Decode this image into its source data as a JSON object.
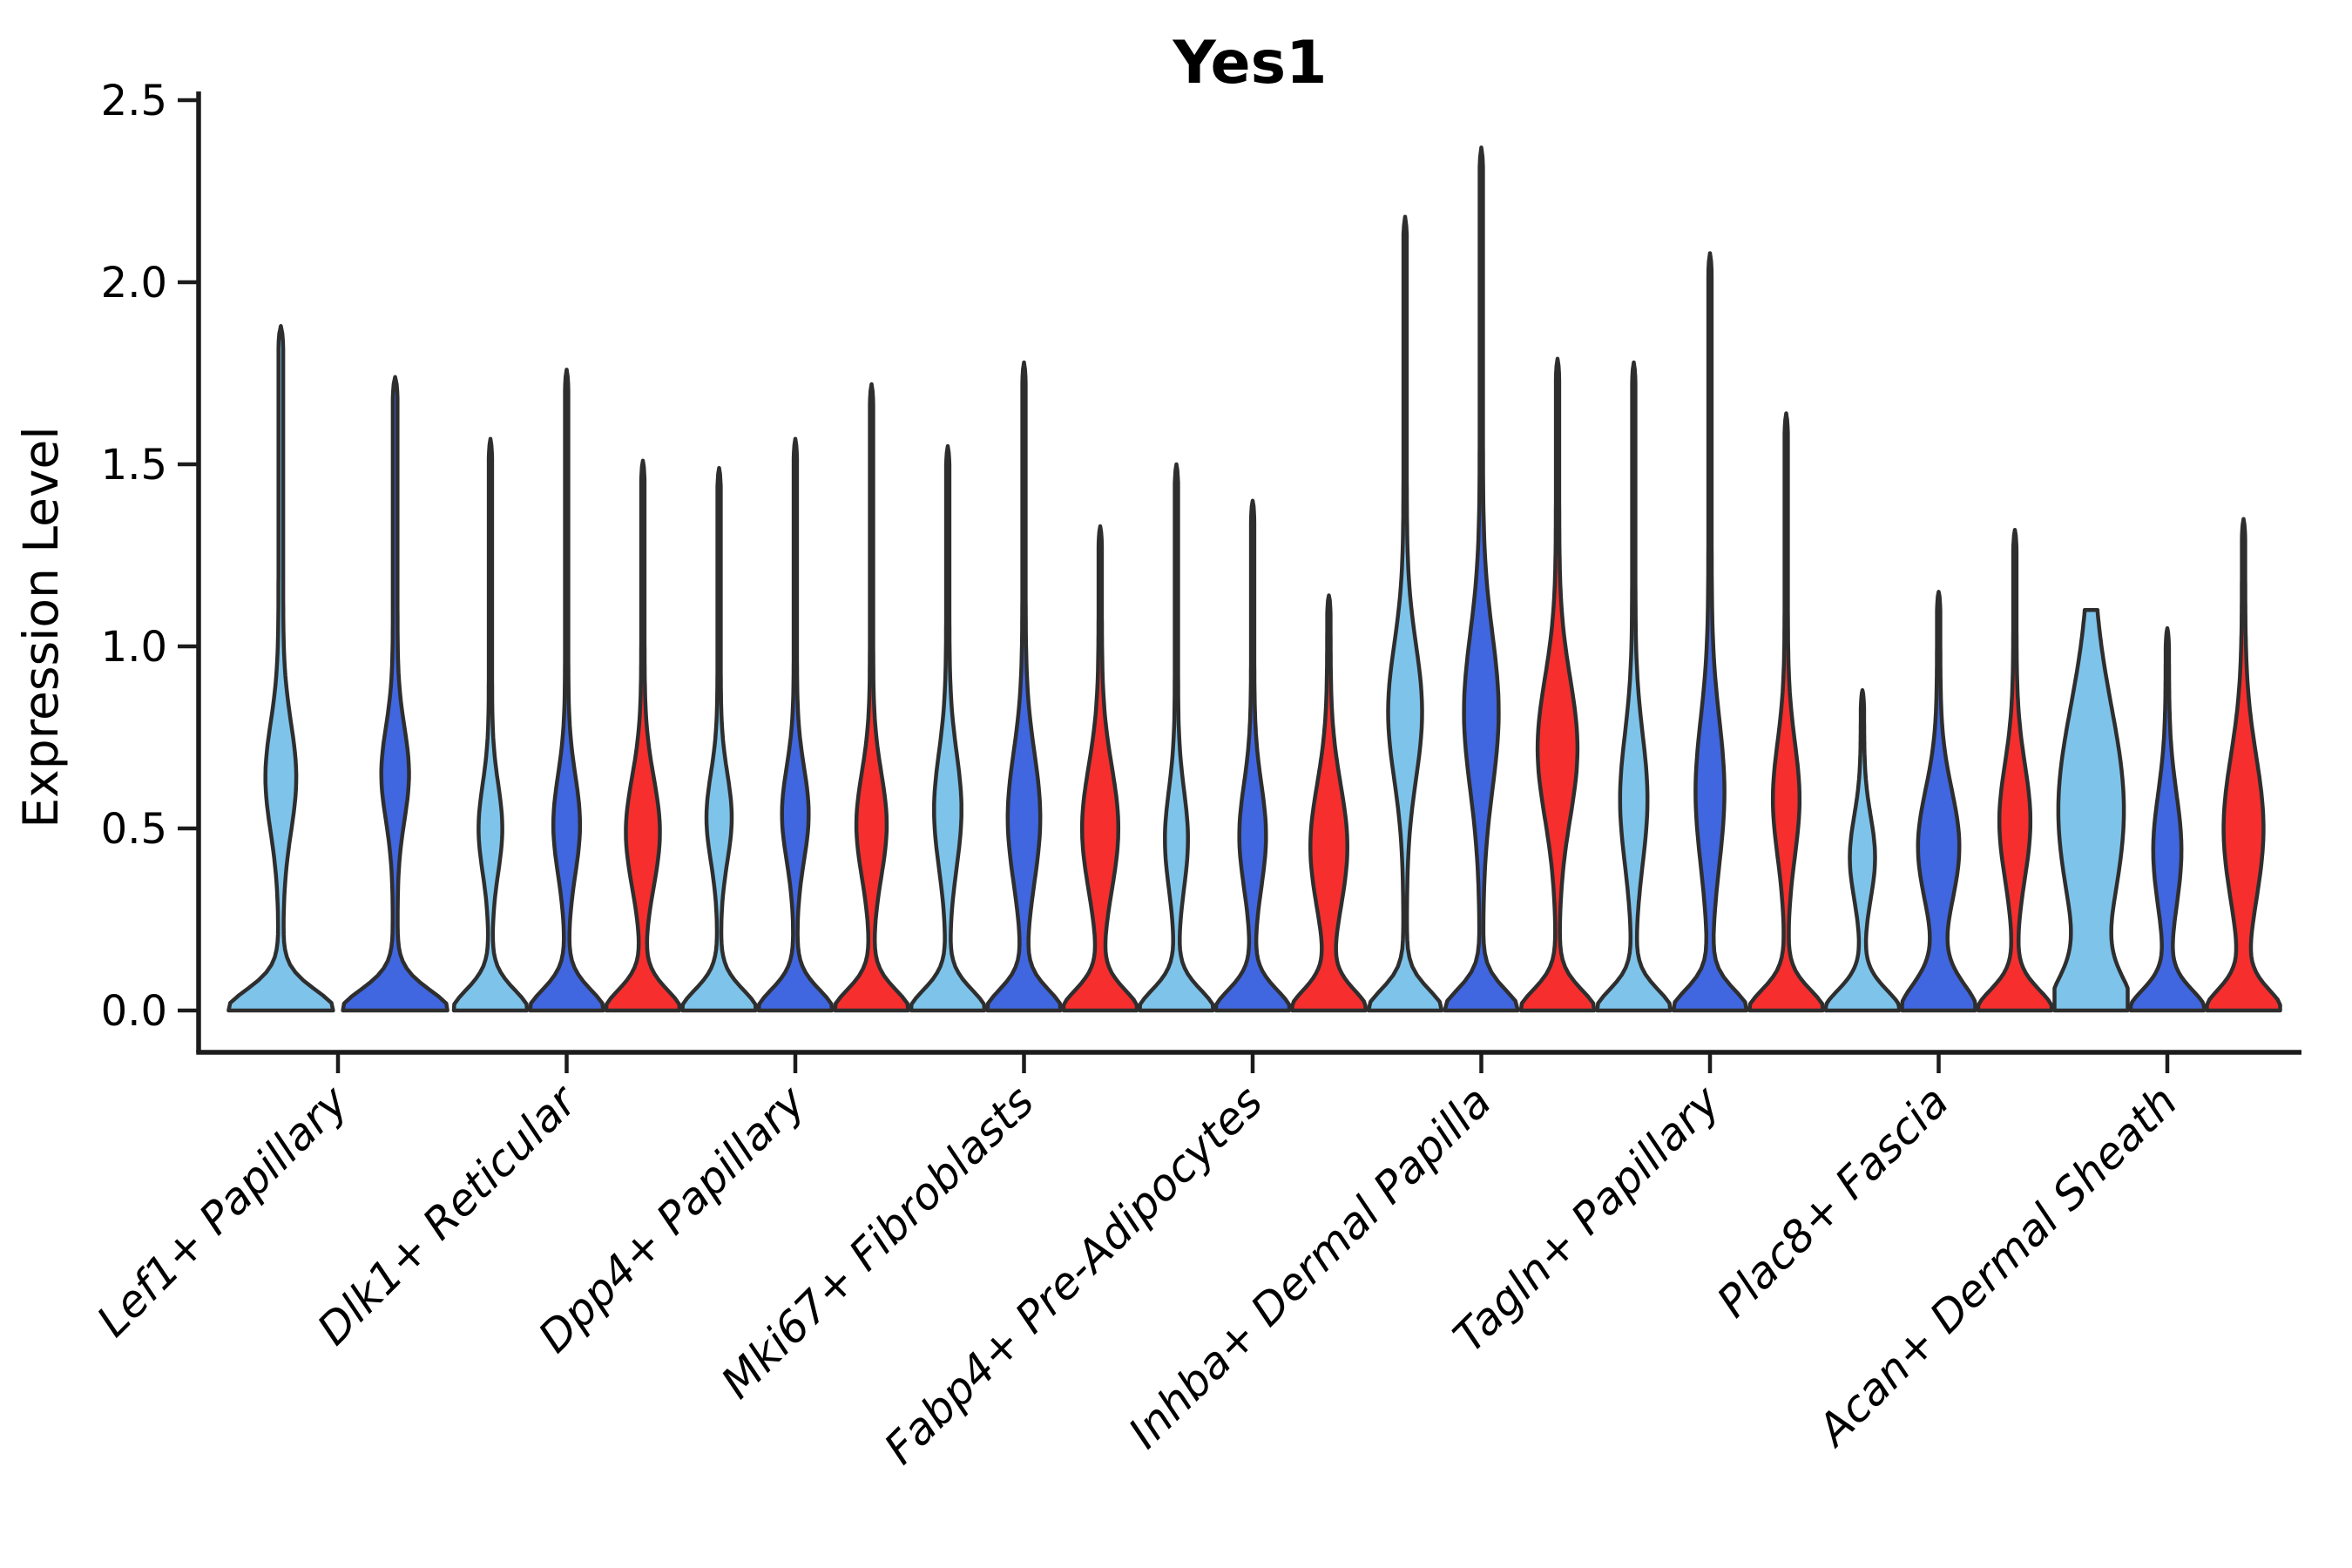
{
  "chart_data": {
    "type": "violin",
    "title": "Yes1",
    "ylabel": "Expression Level",
    "xlabel": "",
    "ylim": [
      0,
      2.5
    ],
    "grid": false,
    "legend_position": "none",
    "background_color": "#ffffff",
    "axis_color": "#1c1c1c",
    "outline_color": "#2e2e2e",
    "yticks": [
      {
        "value": 0.0,
        "label": "0.0"
      },
      {
        "value": 0.5,
        "label": "0.5"
      },
      {
        "value": 1.0,
        "label": "1.0"
      },
      {
        "value": 1.5,
        "label": "1.5"
      },
      {
        "value": 2.0,
        "label": "2.0"
      },
      {
        "value": 2.5,
        "label": "2.5"
      }
    ],
    "categories": [
      "Lef1+ Papillary",
      "Dlk1+ Reticular",
      "Dpp4+ Papillary",
      "Mki67+ Fibroblasts",
      "Fabp4+ Pre-Adipocytes",
      "Inhba+ Dermal Papilla",
      "Tagln+ Papillary",
      "Plac8+ Fascia",
      "Acan+ Dermal Sheath"
    ],
    "series": [
      {
        "name": "skyblue",
        "color": "#7ec3ea"
      },
      {
        "name": "royalblue",
        "color": "#4066e0"
      },
      {
        "name": "red",
        "color": "#f62e2e"
      }
    ],
    "groups": [
      {
        "category": "Lef1+ Papillary",
        "violins": [
          {
            "series": "skyblue",
            "max": 1.88,
            "mode": 0.64,
            "mode_width": 0.25,
            "mode_sigma": 0.21
          },
          {
            "series": "royalblue",
            "max": 1.74,
            "mode": 0.65,
            "mode_width": 0.22,
            "mode_sigma": 0.18
          }
        ]
      },
      {
        "category": "Dlk1+ Reticular",
        "violins": [
          {
            "series": "skyblue",
            "max": 1.57,
            "mode": 0.5,
            "mode_width": 0.28,
            "mode_sigma": 0.17
          },
          {
            "series": "royalblue",
            "max": 1.76,
            "mode": 0.51,
            "mode_width": 0.32,
            "mode_sigma": 0.19
          },
          {
            "series": "red",
            "max": 1.51,
            "mode": 0.49,
            "mode_width": 0.42,
            "mode_sigma": 0.21
          }
        ]
      },
      {
        "category": "Dpp4+ Papillary",
        "violins": [
          {
            "series": "skyblue",
            "max": 1.49,
            "mode": 0.53,
            "mode_width": 0.3,
            "mode_sigma": 0.17
          },
          {
            "series": "royalblue",
            "max": 1.57,
            "mode": 0.54,
            "mode_width": 0.32,
            "mode_sigma": 0.18
          },
          {
            "series": "red",
            "max": 1.72,
            "mode": 0.51,
            "mode_width": 0.37,
            "mode_sigma": 0.2
          }
        ]
      },
      {
        "category": "Mki67+ Fibroblasts",
        "violins": [
          {
            "series": "skyblue",
            "max": 1.55,
            "mode": 0.55,
            "mode_width": 0.33,
            "mode_sigma": 0.22
          },
          {
            "series": "royalblue",
            "max": 1.78,
            "mode": 0.53,
            "mode_width": 0.4,
            "mode_sigma": 0.25
          },
          {
            "series": "red",
            "max": 1.33,
            "mode": 0.5,
            "mode_width": 0.45,
            "mode_sigma": 0.24
          }
        ]
      },
      {
        "category": "Fabp4+ Pre-Adipocytes",
        "violins": [
          {
            "series": "skyblue",
            "max": 1.5,
            "mode": 0.47,
            "mode_width": 0.27,
            "mode_sigma": 0.19
          },
          {
            "series": "royalblue",
            "max": 1.4,
            "mode": 0.48,
            "mode_width": 0.32,
            "mode_sigma": 0.2
          },
          {
            "series": "red",
            "max": 1.14,
            "mode": 0.45,
            "mode_width": 0.46,
            "mode_sigma": 0.24
          }
        ]
      },
      {
        "category": "Inhba+ Dermal Papilla",
        "violins": [
          {
            "series": "skyblue",
            "max": 2.18,
            "mode": 0.82,
            "mode_width": 0.42,
            "mode_sigma": 0.26
          },
          {
            "series": "royalblue",
            "max": 2.37,
            "mode": 0.82,
            "mode_width": 0.43,
            "mode_sigma": 0.3
          },
          {
            "series": "red",
            "max": 1.79,
            "mode": 0.72,
            "mode_width": 0.5,
            "mode_sigma": 0.27
          }
        ]
      },
      {
        "category": "Tagln+ Papillary",
        "violins": [
          {
            "series": "skyblue",
            "max": 1.78,
            "mode": 0.58,
            "mode_width": 0.33,
            "mode_sigma": 0.25
          },
          {
            "series": "royalblue",
            "max": 2.08,
            "mode": 0.6,
            "mode_width": 0.35,
            "mode_sigma": 0.28
          },
          {
            "series": "red",
            "max": 1.64,
            "mode": 0.58,
            "mode_width": 0.32,
            "mode_sigma": 0.22
          }
        ]
      },
      {
        "category": "Plac8+ Fascia",
        "violins": [
          {
            "series": "skyblue",
            "max": 0.88,
            "mode": 0.42,
            "mode_width": 0.3,
            "mode_sigma": 0.16
          },
          {
            "series": "royalblue",
            "max": 1.15,
            "mode": 0.45,
            "mode_width": 0.52,
            "mode_sigma": 0.22,
            "base_sigma": 0.11
          },
          {
            "series": "red",
            "max": 1.32,
            "mode": 0.52,
            "mode_width": 0.38,
            "mode_sigma": 0.22
          }
        ]
      },
      {
        "category": "Acan+ Dermal Sheath",
        "violins": [
          {
            "series": "skyblue",
            "max": 1.1,
            "mode": 0.55,
            "mode_width": 0.85,
            "mode_sigma": 0.4,
            "blunt_top": true,
            "base_sigma": 0.13
          },
          {
            "series": "royalblue",
            "max": 1.05,
            "mode": 0.44,
            "mode_width": 0.34,
            "mode_sigma": 0.22
          },
          {
            "series": "red",
            "max": 1.35,
            "mode": 0.5,
            "mode_width": 0.5,
            "mode_sigma": 0.28
          }
        ]
      }
    ]
  }
}
